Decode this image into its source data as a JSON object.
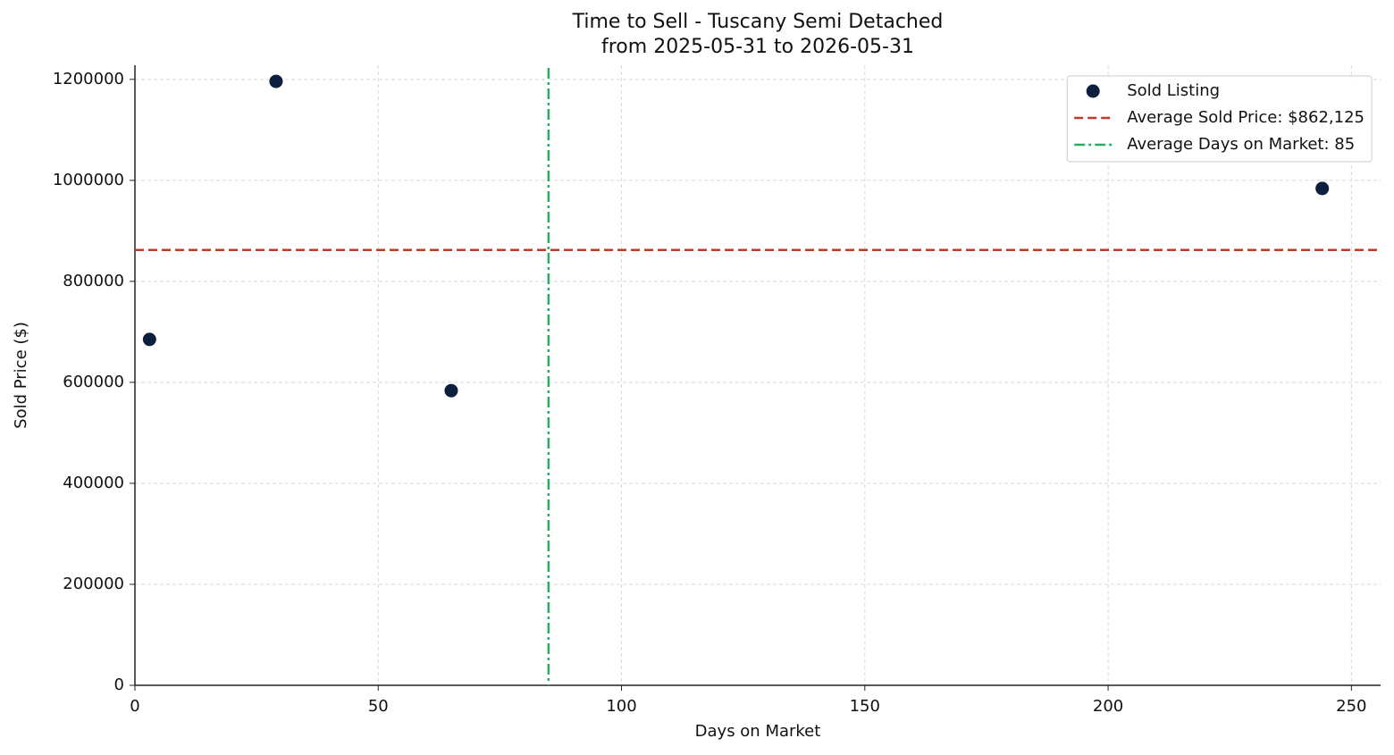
{
  "chart_data": {
    "type": "scatter",
    "title": "Time to Sell - Tuscany Semi Detached",
    "subtitle": "from 2025-05-31 to 2026-05-31",
    "x_label": "Days on Market",
    "y_label": "Sold Price ($)",
    "series": [
      {
        "name": "Sold Listing",
        "color": "#0d1f3c",
        "x": [
          3,
          29,
          65,
          244
        ],
        "values": [
          685000,
          1196000,
          583500,
          984000
        ]
      }
    ],
    "hlines": [
      {
        "name": "Average Sold Price: $862,125",
        "value": 862125,
        "color": "#c0392b",
        "style": "dashed"
      }
    ],
    "vlines": [
      {
        "name": "Average Days on Market: 85",
        "value": 85,
        "color": "#27ae60",
        "style": "dashdot"
      }
    ],
    "xlim": [
      0,
      256
    ],
    "xticks": [
      0,
      50,
      100,
      150,
      200,
      250
    ],
    "ylim": [
      0,
      1228000
    ],
    "yticks": [
      0,
      200000,
      400000,
      600000,
      800000,
      1000000,
      1200000
    ],
    "grid": true,
    "legend": "upper right"
  }
}
